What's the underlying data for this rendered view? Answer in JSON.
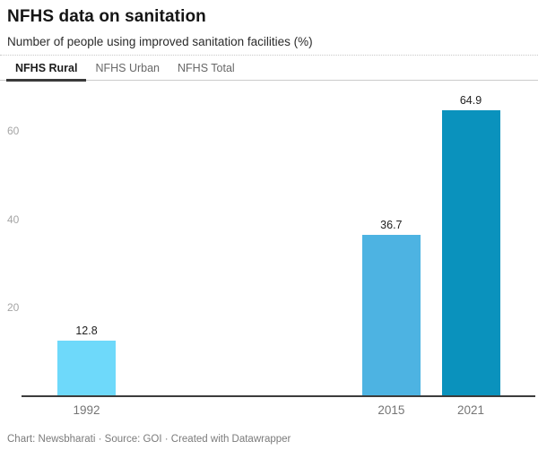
{
  "header": {
    "title": "NFHS data on sanitation",
    "subtitle": "Number of people using improved sanitation facilities (%)"
  },
  "tabs": [
    {
      "label": "NFHS Rural",
      "active": true
    },
    {
      "label": "NFHS Urban",
      "active": false
    },
    {
      "label": "NFHS Total",
      "active": false
    }
  ],
  "chart_data": {
    "type": "bar",
    "title": "NFHS data on sanitation",
    "subtitle": "Number of people using improved sanitation facilities (%)",
    "categories": [
      "1992",
      "2015",
      "2021"
    ],
    "values": [
      12.8,
      36.7,
      64.9
    ],
    "value_labels": [
      "12.8",
      "36.7",
      "64.9"
    ],
    "bar_colors": [
      "#6ed9fa",
      "#4db3e2",
      "#0a92bd"
    ],
    "xlabel": "",
    "ylabel": "",
    "y_ticks": [
      20,
      40,
      60
    ],
    "ylim": [
      0,
      66
    ],
    "x_scale": "linear-years",
    "grid": false,
    "legend": "none",
    "axis_color": "#3c3c3c",
    "tick_label_color": "#a5a5a5",
    "x_label_color": "#757575"
  },
  "footer": {
    "credit": "Chart: Newsbharati · Source: GOI · Created with Datawrapper"
  }
}
